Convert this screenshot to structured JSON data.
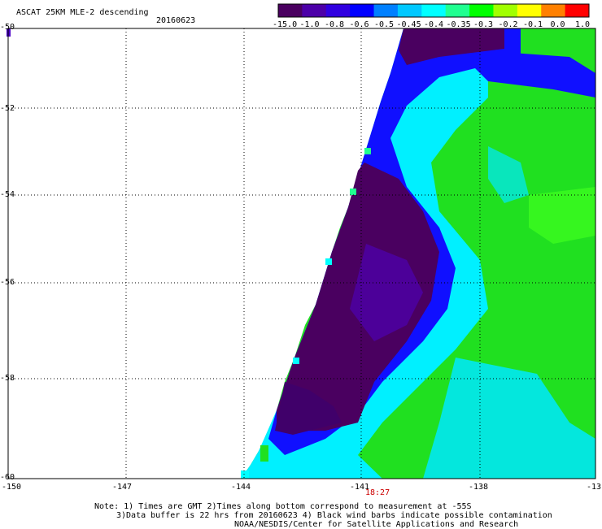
{
  "header": {
    "title": "ASCAT 25KM MLE-2 descending",
    "date": "20160623"
  },
  "colorbar": {
    "labels": [
      "-15.0",
      "-1.0",
      "-0.8",
      "-0.6",
      "-0.5",
      "-0.45",
      "-0.4",
      "-0.35",
      "-0.3",
      "-0.2",
      "-0.1",
      "0.0",
      "1.0"
    ],
    "colors": [
      "#4a0060",
      "#4c00a8",
      "#3000e0",
      "#0000ff",
      "#0080ff",
      "#00c8ff",
      "#00ffff",
      "#20ff90",
      "#00ff00",
      "#a0ff00",
      "#ffff00",
      "#ff8000",
      "#ff0000"
    ]
  },
  "map": {
    "lat_labels": [
      "-50",
      "-52",
      "-54",
      "-56",
      "-58",
      "-60"
    ],
    "lon_labels": [
      "-150",
      "-147",
      "-144",
      "-141",
      "-138",
      "-13"
    ],
    "time_label": "18:27",
    "time_color": "#cc0000"
  },
  "notes": {
    "line1": "Note: 1) Times are GMT 2)Times along bottom correspond to measurement at -55S",
    "line2": "3)Data buffer is 22 hrs from 20160623 4) Black wind barbs indicate possible contamination",
    "line3": "NOAA/NESDIS/Center for Satellite Applications and Research"
  }
}
